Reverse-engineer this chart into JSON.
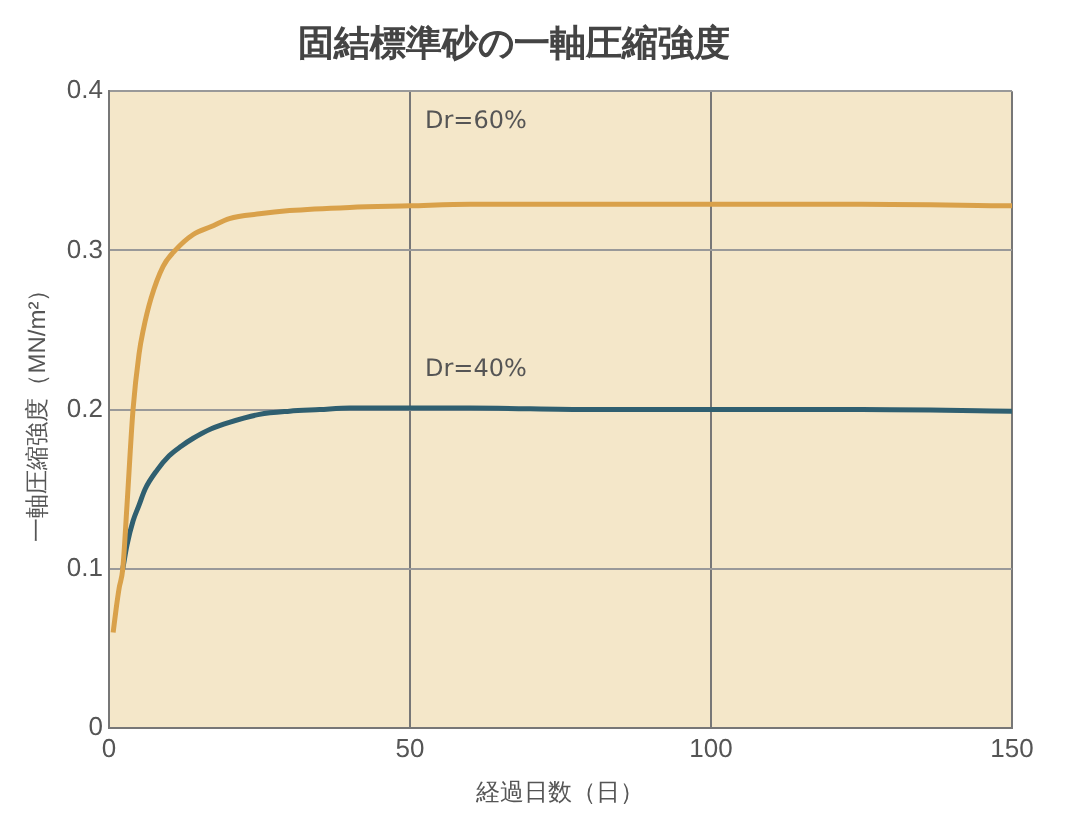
{
  "chart_data": {
    "type": "line",
    "title": "固結標準砂の一軸圧縮強度",
    "xlabel": "経過日数（日）",
    "ylabel": "一軸圧縮強度（MN/m²）",
    "xlim": [
      0,
      150
    ],
    "xticks": [
      0,
      50,
      100,
      150
    ],
    "ylim": [
      0,
      0.4
    ],
    "yticks": [
      0,
      0.1,
      0.2,
      0.3,
      0.4
    ],
    "grid": true,
    "legend": false,
    "marker": "none",
    "line_style": "solid",
    "series": [
      {
        "name": "Dr=60%",
        "color": "#d9a14a",
        "x": [
          0.7,
          1.2,
          1.7,
          2.3,
          3,
          4,
          5,
          5.7,
          7,
          9,
          11,
          14,
          17,
          20,
          25,
          30,
          40,
          50,
          60,
          80,
          100,
          125,
          150
        ],
        "values": [
          0.06,
          0.075,
          0.088,
          0.1,
          0.14,
          0.2,
          0.235,
          0.25,
          0.27,
          0.29,
          0.3,
          0.31,
          0.315,
          0.32,
          0.323,
          0.325,
          0.327,
          0.328,
          0.329,
          0.329,
          0.329,
          0.329,
          0.328
        ]
      },
      {
        "name": "Dr=40%",
        "color": "#2f5f70",
        "x": [
          2.3,
          3,
          4,
          5,
          6,
          8,
          10,
          12,
          14,
          17,
          20,
          25,
          30,
          35,
          40,
          50,
          60,
          80,
          100,
          125,
          150
        ],
        "values": [
          0.1,
          0.115,
          0.13,
          0.14,
          0.15,
          0.162,
          0.171,
          0.177,
          0.182,
          0.188,
          0.192,
          0.197,
          0.199,
          0.2,
          0.201,
          0.201,
          0.201,
          0.2,
          0.2,
          0.2,
          0.199
        ]
      }
    ]
  }
}
